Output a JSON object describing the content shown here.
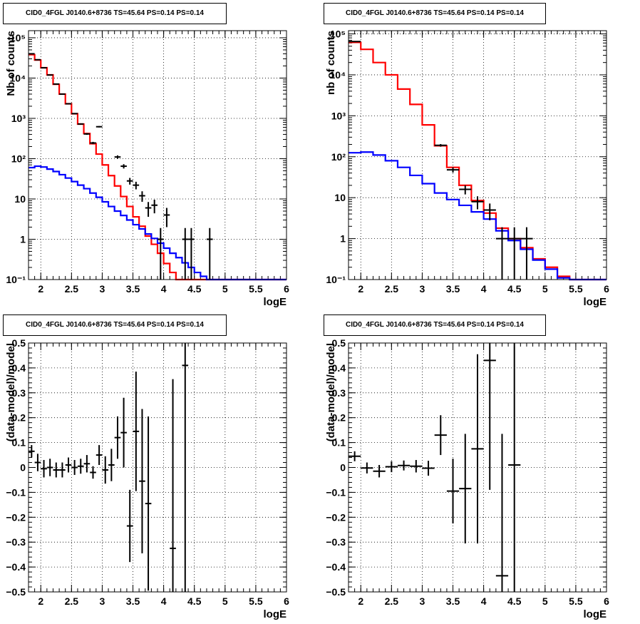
{
  "panels": [
    {
      "title": "CID0_4FGL J0140.6+8736 TS=45.64 PS=0.14 PS=0.14"
    },
    {
      "title": "CID0_4FGL J0140.6+8736 TS=45.64 PS=0.14 PS=0.14"
    },
    {
      "title": "CID0_4FGL J0140.6+8736 TS=45.64 PS=0.14 PS=0.14"
    },
    {
      "title": "CID0_4FGL J0140.6+8736 TS=45.64 PS=0.14 PS=0.14"
    }
  ],
  "colors": {
    "model": "#ff0000",
    "background": "#0000ff",
    "data": "#000000",
    "grid": "#000000"
  },
  "chart_data": [
    {
      "type": "line",
      "title": "CID0_4FGL J0140.6+8736 TS=45.64 PS=0.14 PS=0.14",
      "xlabel": "logE",
      "ylabel": "Nb of counts",
      "xlim": [
        1.8,
        6
      ],
      "ylim": [
        0.1,
        150000
      ],
      "log_y": true,
      "grid": true,
      "xticks": [
        2,
        2.5,
        3,
        3.5,
        4,
        4.5,
        5,
        5.5,
        6
      ],
      "xtick_labels": [
        "2",
        "2.5",
        "3",
        "3.5",
        "4",
        "4.5",
        "5",
        "5.5",
        "6"
      ],
      "yticks": [
        0.1,
        1,
        10,
        100,
        1000,
        10000,
        100000
      ],
      "ytick_labels": [
        "10⁻¹",
        "1",
        "10",
        "10²",
        "10³",
        "10⁴",
        "10⁵"
      ],
      "bin_edges": [
        1.8,
        1.9,
        2.0,
        2.1,
        2.2,
        2.3,
        2.4,
        2.5,
        2.6,
        2.7,
        2.8,
        2.9,
        3.0,
        3.1,
        3.2,
        3.3,
        3.4,
        3.5,
        3.6,
        3.7,
        3.8,
        3.9,
        4.0,
        4.1,
        4.2,
        4.3,
        4.4,
        4.5,
        4.6,
        4.7,
        4.8,
        4.9,
        5.0,
        5.1,
        5.2,
        5.3,
        5.4,
        5.5,
        5.6,
        5.7,
        5.8,
        5.9,
        6.0
      ],
      "series": [
        {
          "name": "",
          "color": "#ff0000",
          "kind": "step",
          "values": [
            38000,
            28000,
            18000,
            12000,
            7000,
            4000,
            2300,
            1300,
            720,
            420,
            235,
            130,
            70,
            38,
            21,
            11.5,
            6.5,
            3.6,
            2.1,
            1.2,
            0.75,
            0.45,
            0.25,
            0.15,
            0.1,
            0.1,
            0.1,
            0.1,
            0.1,
            0.1,
            0.1,
            0.1,
            0.1,
            0.1,
            0.1,
            0.1,
            0.1,
            0.1,
            0.1,
            0.1,
            0.1,
            0.1
          ]
        },
        {
          "name": "",
          "color": "#0000ff",
          "kind": "step",
          "values": [
            60,
            65,
            62,
            55,
            48,
            40,
            33,
            27,
            22,
            18,
            14,
            11,
            8.5,
            6.5,
            5,
            3.9,
            3,
            2.3,
            1.8,
            1.35,
            1.05,
            0.8,
            0.6,
            0.45,
            0.35,
            0.26,
            0.2,
            0.15,
            0.12,
            0.1,
            0.1,
            0.1,
            0.1,
            0.1,
            0.1,
            0.1,
            0.1,
            0.1,
            0.1,
            0.1,
            0.1,
            0.1
          ]
        },
        {
          "name": "",
          "color": "#000000",
          "kind": "points",
          "points": [
            {
              "x": 1.85,
              "y": 40000,
              "yerr": 200
            },
            {
              "x": 1.95,
              "y": 28500,
              "yerr": 170
            },
            {
              "x": 2.05,
              "y": 18000,
              "yerr": 135
            },
            {
              "x": 2.15,
              "y": 11900,
              "yerr": 110
            },
            {
              "x": 2.25,
              "y": 7100,
              "yerr": 85
            },
            {
              "x": 2.35,
              "y": 4000,
              "yerr": 63
            },
            {
              "x": 2.45,
              "y": 2300,
              "yerr": 48
            },
            {
              "x": 2.55,
              "y": 1310,
              "yerr": 36
            },
            {
              "x": 2.65,
              "y": 725,
              "yerr": 27
            },
            {
              "x": 2.75,
              "y": 410,
              "yerr": 20
            },
            {
              "x": 2.85,
              "y": 245,
              "yerr": 16
            },
            {
              "x": 2.95,
              "y": 620,
              "yerr": 25
            },
            {
              "x": 3.25,
              "y": 110,
              "yerr": 10.5
            },
            {
              "x": 3.35,
              "y": 65,
              "yerr": 8
            },
            {
              "x": 3.45,
              "y": 28,
              "yerr": 5.3
            },
            {
              "x": 3.55,
              "y": 22,
              "yerr": 4.7
            },
            {
              "x": 3.65,
              "y": 12,
              "yerr": 3.5
            },
            {
              "x": 3.75,
              "y": 6,
              "yerr": 2.4
            },
            {
              "x": 3.85,
              "y": 7,
              "yerr": 2.6
            },
            {
              "x": 3.95,
              "y": 1,
              "yerr": 0.9
            },
            {
              "x": 4.05,
              "y": 4,
              "yerr": 2
            },
            {
              "x": 4.35,
              "y": 1,
              "yerr": 0.9
            },
            {
              "x": 4.45,
              "y": 1,
              "yerr": 0.9
            },
            {
              "x": 4.75,
              "y": 1,
              "yerr": 0.9
            }
          ]
        }
      ]
    },
    {
      "type": "line",
      "title": "CID0_4FGL J0140.6+8736 TS=45.64 PS=0.14 PS=0.14",
      "xlabel": "logE",
      "ylabel": "nb of counts",
      "xlim": [
        1.8,
        6
      ],
      "ylim": [
        0.1,
        120000
      ],
      "log_y": true,
      "grid": true,
      "xticks": [
        2,
        2.5,
        3,
        3.5,
        4,
        4.5,
        5,
        5.5,
        6
      ],
      "xtick_labels": [
        "2",
        "2.5",
        "3",
        "3.5",
        "4",
        "4.5",
        "5",
        "5.5",
        "6"
      ],
      "yticks": [
        0.1,
        1,
        10,
        100,
        1000,
        10000,
        100000
      ],
      "ytick_labels": [
        "10⁻¹",
        "1",
        "10",
        "10²",
        "10³",
        "10⁴",
        "10⁵"
      ],
      "bin_edges": [
        1.8,
        2.0,
        2.2,
        2.4,
        2.6,
        2.8,
        3.0,
        3.2,
        3.4,
        3.6,
        3.8,
        4.0,
        4.2,
        4.4,
        4.6,
        4.8,
        5.0,
        5.2,
        5.4,
        5.6,
        5.8,
        6.0
      ],
      "series": [
        {
          "name": "",
          "color": "#ff0000",
          "kind": "step",
          "values": [
            62000,
            42000,
            20000,
            10000,
            4500,
            1900,
            600,
            185,
            55,
            20,
            8.5,
            4.2,
            1.8,
            1.0,
            0.6,
            0.32,
            0.2,
            0.12,
            0.1,
            0.1,
            0.1
          ]
        },
        {
          "name": "",
          "color": "#0000ff",
          "kind": "step",
          "values": [
            125,
            130,
            110,
            80,
            55,
            35,
            22,
            13,
            9,
            6.5,
            4.5,
            3.0,
            1.55,
            0.9,
            0.55,
            0.3,
            0.18,
            0.11,
            0.1,
            0.1,
            0.1
          ]
        },
        {
          "name": "",
          "color": "#000000",
          "kind": "points",
          "points": [
            {
              "x": 1.9,
              "y": 65000,
              "yerr": 260
            },
            {
              "x": 3.3,
              "y": 190,
              "yerr": 14
            },
            {
              "x": 3.5,
              "y": 48,
              "yerr": 7
            },
            {
              "x": 3.7,
              "y": 16,
              "yerr": 4
            },
            {
              "x": 3.9,
              "y": 8,
              "yerr": 2.8
            },
            {
              "x": 4.1,
              "y": 5,
              "yerr": 2.2
            },
            {
              "x": 4.3,
              "y": 1,
              "yerr": 0.9
            },
            {
              "x": 4.5,
              "y": 1,
              "yerr": 0.9
            },
            {
              "x": 4.7,
              "y": 1,
              "yerr": 0.9
            }
          ]
        }
      ]
    },
    {
      "type": "scatter",
      "title": "CID0_4FGL J0140.6+8736 TS=45.64 PS=0.14 PS=0.14",
      "xlabel": "logE",
      "ylabel": "(data-model)/model",
      "xlim": [
        1.8,
        6
      ],
      "ylim": [
        -0.5,
        0.5
      ],
      "grid": true,
      "xticks": [
        2,
        2.5,
        3,
        3.5,
        4,
        4.5,
        5,
        5.5,
        6
      ],
      "xtick_labels": [
        "2",
        "2.5",
        "3",
        "3.5",
        "4",
        "4.5",
        "5",
        "5.5",
        "6"
      ],
      "yticks": [
        -0.5,
        -0.4,
        -0.3,
        -0.2,
        -0.1,
        0,
        0.1,
        0.2,
        0.3,
        0.4,
        0.5
      ],
      "ytick_labels": [
        "−0.5",
        "−0.4",
        "−0.3",
        "−0.2",
        "−0.1",
        "0",
        "0.1",
        "0.2",
        "0.3",
        "0.4",
        "0.5"
      ],
      "xerr": 0.05,
      "series": [
        {
          "name": "",
          "color": "#000000",
          "kind": "points",
          "points": [
            {
              "x": 1.85,
              "y": 0.065,
              "yerr": 0.025
            },
            {
              "x": 1.95,
              "y": 0.02,
              "yerr": 0.035
            },
            {
              "x": 2.05,
              "y": -0.005,
              "yerr": 0.035
            },
            {
              "x": 2.15,
              "y": 0.0,
              "yerr": 0.035
            },
            {
              "x": 2.25,
              "y": -0.01,
              "yerr": 0.03
            },
            {
              "x": 2.35,
              "y": -0.01,
              "yerr": 0.03
            },
            {
              "x": 2.45,
              "y": 0.01,
              "yerr": 0.03
            },
            {
              "x": 2.55,
              "y": 0.0,
              "yerr": 0.03
            },
            {
              "x": 2.65,
              "y": 0.005,
              "yerr": 0.03
            },
            {
              "x": 2.75,
              "y": 0.015,
              "yerr": 0.035
            },
            {
              "x": 2.85,
              "y": -0.02,
              "yerr": 0.025
            },
            {
              "x": 2.95,
              "y": 0.05,
              "yerr": 0.04
            },
            {
              "x": 3.05,
              "y": -0.01,
              "yerr": 0.055
            },
            {
              "x": 3.15,
              "y": 0.01,
              "yerr": 0.065
            },
            {
              "x": 3.25,
              "y": 0.12,
              "yerr": 0.085
            },
            {
              "x": 3.35,
              "y": 0.14,
              "yerr": 0.14
            },
            {
              "x": 3.45,
              "y": -0.235,
              "yerr": 0.145
            },
            {
              "x": 3.55,
              "y": 0.145,
              "yerr": 0.24
            },
            {
              "x": 3.65,
              "y": -0.055,
              "yerr": 0.29
            },
            {
              "x": 3.75,
              "y": -0.145,
              "yerr": 0.35
            },
            {
              "x": 4.15,
              "y": -0.325,
              "yerr": 0.68
            },
            {
              "x": 4.35,
              "y": 0.41,
              "yerr": 0.98
            }
          ]
        }
      ]
    },
    {
      "type": "scatter",
      "title": "CID0_4FGL J0140.6+8736 TS=45.64 PS=0.14 PS=0.14",
      "xlabel": "logE",
      "ylabel": "(data-model)/model",
      "xlim": [
        1.8,
        6
      ],
      "ylim": [
        -0.5,
        0.5
      ],
      "grid": true,
      "xticks": [
        2,
        2.5,
        3,
        3.5,
        4,
        4.5,
        5,
        5.5,
        6
      ],
      "xtick_labels": [
        "2",
        "2.5",
        "3",
        "3.5",
        "4",
        "4.5",
        "5",
        "5.5",
        "6"
      ],
      "yticks": [
        -0.5,
        -0.4,
        -0.3,
        -0.2,
        -0.1,
        0,
        0.1,
        0.2,
        0.3,
        0.4,
        0.5
      ],
      "ytick_labels": [
        "−0.5",
        "−0.4",
        "−0.3",
        "−0.2",
        "−0.1",
        "0",
        "0.1",
        "0.2",
        "0.3",
        "0.4",
        "0.5"
      ],
      "xerr": 0.1,
      "series": [
        {
          "name": "",
          "color": "#000000",
          "kind": "points",
          "points": [
            {
              "x": 1.9,
              "y": 0.045,
              "yerr": 0.02
            },
            {
              "x": 2.1,
              "y": -0.002,
              "yerr": 0.022
            },
            {
              "x": 2.3,
              "y": -0.015,
              "yerr": 0.025
            },
            {
              "x": 2.5,
              "y": 0.003,
              "yerr": 0.022
            },
            {
              "x": 2.7,
              "y": 0.008,
              "yerr": 0.02
            },
            {
              "x": 2.9,
              "y": 0.005,
              "yerr": 0.025
            },
            {
              "x": 3.1,
              "y": -0.003,
              "yerr": 0.03
            },
            {
              "x": 3.3,
              "y": 0.13,
              "yerr": 0.08
            },
            {
              "x": 3.5,
              "y": -0.095,
              "yerr": 0.13
            },
            {
              "x": 3.7,
              "y": -0.085,
              "yerr": 0.22
            },
            {
              "x": 3.9,
              "y": 0.075,
              "yerr": 0.38
            },
            {
              "x": 4.1,
              "y": 0.43,
              "yerr": 0.52
            },
            {
              "x": 4.3,
              "y": -0.435,
              "yerr": 0.57
            },
            {
              "x": 4.5,
              "y": 0.01,
              "yerr": 0.8
            }
          ]
        }
      ]
    }
  ]
}
